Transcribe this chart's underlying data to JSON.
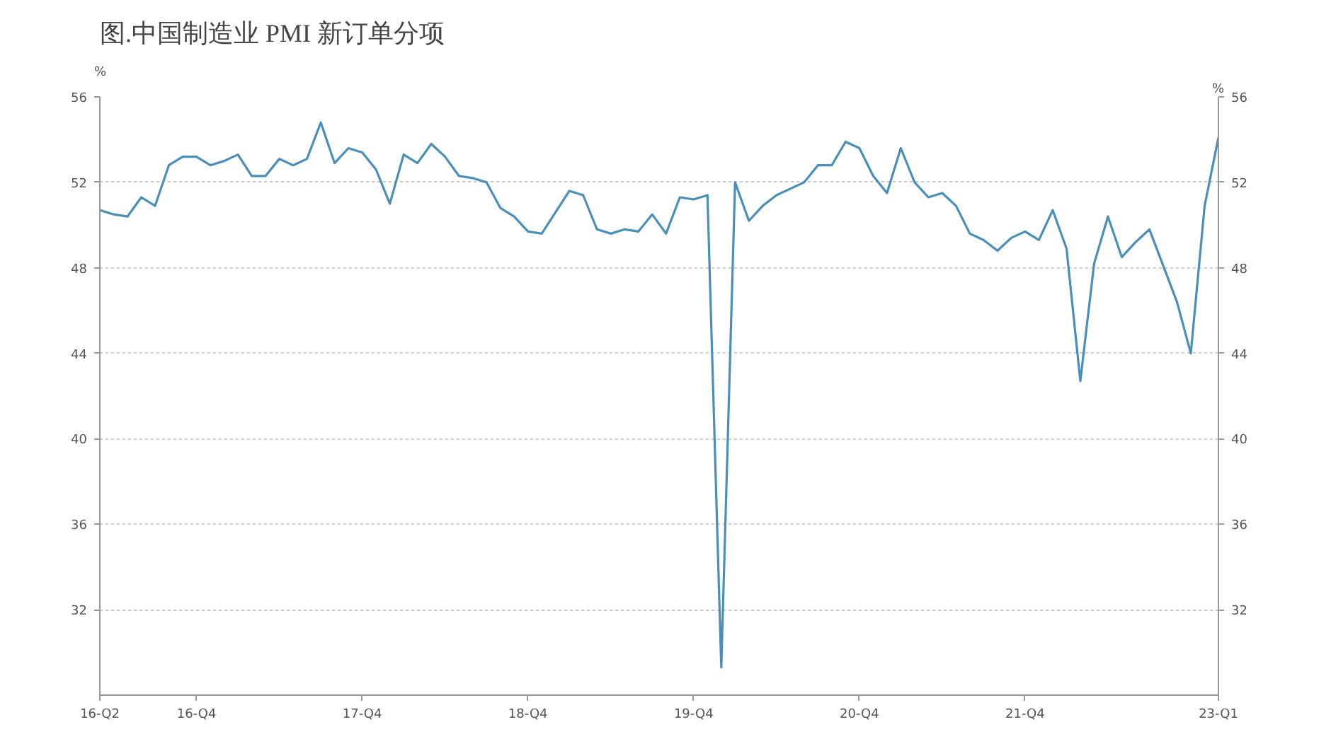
{
  "chart_data": {
    "type": "line",
    "title": "图.中国制造业 PMI 新订单分项",
    "categories": [
      "16-Q2",
      null,
      null,
      null,
      null,
      null,
      null,
      "16-Q4",
      null,
      null,
      null,
      null,
      null,
      null,
      null,
      null,
      null,
      null,
      null,
      "17-Q4",
      null,
      null,
      null,
      null,
      null,
      null,
      null,
      null,
      null,
      null,
      null,
      "18-Q4",
      null,
      null,
      null,
      null,
      null,
      null,
      null,
      null,
      null,
      null,
      null,
      "19-Q4",
      null,
      null,
      null,
      null,
      null,
      null,
      null,
      null,
      null,
      null,
      null,
      "20-Q4",
      null,
      null,
      null,
      null,
      null,
      null,
      null,
      null,
      null,
      null,
      null,
      "21-Q4",
      null,
      null,
      null,
      null,
      null,
      null,
      null,
      null,
      null,
      null,
      null,
      null,
      null,
      "23-Q1"
    ],
    "series": [
      {
        "color": "#4a8fba",
        "values": [
          50.7,
          50.5,
          50.4,
          51.3,
          50.9,
          52.8,
          53.2,
          53.2,
          52.8,
          53.0,
          53.3,
          52.3,
          52.3,
          53.1,
          52.8,
          53.1,
          54.8,
          52.9,
          53.6,
          53.4,
          52.6,
          51.0,
          53.3,
          52.9,
          53.8,
          53.2,
          52.3,
          52.2,
          52.0,
          50.8,
          50.4,
          49.7,
          49.6,
          50.6,
          51.6,
          51.4,
          49.8,
          49.6,
          49.8,
          49.7,
          50.5,
          49.6,
          51.3,
          51.2,
          51.4,
          29.3,
          52.0,
          50.2,
          50.9,
          51.4,
          51.7,
          52.0,
          52.8,
          52.8,
          53.9,
          53.6,
          52.3,
          51.5,
          53.6,
          52.0,
          51.3,
          51.5,
          50.9,
          49.6,
          49.3,
          48.8,
          49.4,
          49.7,
          49.3,
          50.7,
          48.9,
          42.7,
          48.2,
          50.4,
          48.5,
          49.2,
          49.8,
          48.1,
          46.4,
          44.0,
          50.9,
          54.1
        ]
      }
    ],
    "ylabel": "%",
    "y2label": "%",
    "ylim": [
      28,
      56
    ],
    "yticks": [
      32,
      36,
      40,
      44,
      48,
      52,
      56
    ],
    "y2lim": [
      28,
      56
    ],
    "y2ticks": [
      32,
      36,
      40,
      44,
      48,
      52,
      56
    ],
    "grid": "y",
    "marker": "none",
    "line_style": "solid"
  }
}
